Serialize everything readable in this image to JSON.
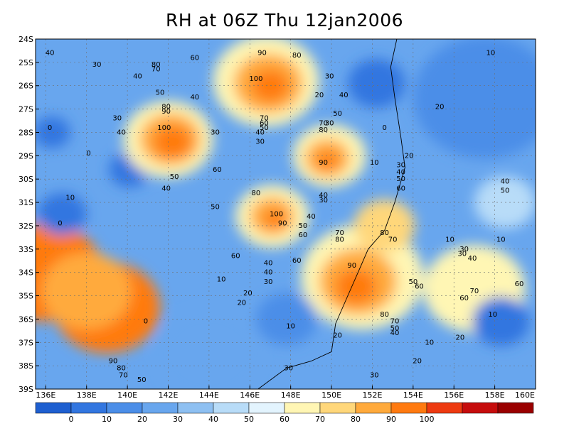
{
  "title": "RH at 06Z Thu 12jan2006",
  "map": {
    "type": "filled-contour",
    "variable": "RH",
    "lon_ticks": [
      "136E",
      "138E",
      "140E",
      "142E",
      "144E",
      "146E",
      "148E",
      "150E",
      "152E",
      "154E",
      "156E",
      "158E",
      "160E"
    ],
    "lat_ticks": [
      "24S",
      "25S",
      "26S",
      "27S",
      "28S",
      "29S",
      "30S",
      "31S",
      "32S",
      "33S",
      "34S",
      "35S",
      "36S",
      "37S",
      "38S",
      "39S"
    ],
    "lon_range": [
      135.5,
      160
    ],
    "lat_range": [
      -39,
      -24
    ],
    "grid": "dashed",
    "contour_labels": [
      {
        "text": "40",
        "lon": 136.2,
        "lat": -24.6
      },
      {
        "text": "30",
        "lon": 138.5,
        "lat": -25.1
      },
      {
        "text": "80",
        "lon": 141.4,
        "lat": -25.1
      },
      {
        "text": "70",
        "lon": 141.4,
        "lat": -25.3
      },
      {
        "text": "60",
        "lon": 143.3,
        "lat": -24.8
      },
      {
        "text": "90",
        "lon": 146.6,
        "lat": -24.6
      },
      {
        "text": "80",
        "lon": 148.3,
        "lat": -24.7
      },
      {
        "text": "100",
        "lon": 146.3,
        "lat": -25.7
      },
      {
        "text": "40",
        "lon": 140.5,
        "lat": -25.6
      },
      {
        "text": "30",
        "lon": 149.9,
        "lat": -25.6
      },
      {
        "text": "10",
        "lon": 157.8,
        "lat": -24.6
      },
      {
        "text": "50",
        "lon": 141.6,
        "lat": -26.3
      },
      {
        "text": "40",
        "lon": 143.3,
        "lat": -26.5
      },
      {
        "text": "20",
        "lon": 149.4,
        "lat": -26.4
      },
      {
        "text": "40",
        "lon": 150.6,
        "lat": -26.4
      },
      {
        "text": "20",
        "lon": 155.3,
        "lat": -26.9
      },
      {
        "text": "0",
        "lon": 136.2,
        "lat": -27.8
      },
      {
        "text": "30",
        "lon": 139.5,
        "lat": -27.4
      },
      {
        "text": "90",
        "lon": 141.9,
        "lat": -27.1
      },
      {
        "text": "80",
        "lon": 141.9,
        "lat": -26.9
      },
      {
        "text": "70",
        "lon": 146.7,
        "lat": -27.4
      },
      {
        "text": "60",
        "lon": 146.7,
        "lat": -27.6
      },
      {
        "text": "50",
        "lon": 146.7,
        "lat": -27.8
      },
      {
        "text": "40",
        "lon": 146.5,
        "lat": -28.0
      },
      {
        "text": "30",
        "lon": 146.5,
        "lat": -28.4
      },
      {
        "text": "50",
        "lon": 150.3,
        "lat": -27.2
      },
      {
        "text": "70",
        "lon": 149.6,
        "lat": -27.6
      },
      {
        "text": "30",
        "lon": 149.9,
        "lat": -27.6
      },
      {
        "text": "80",
        "lon": 149.6,
        "lat": -27.9
      },
      {
        "text": "0",
        "lon": 152.6,
        "lat": -27.8
      },
      {
        "text": "100",
        "lon": 141.8,
        "lat": -27.8
      },
      {
        "text": "40",
        "lon": 139.7,
        "lat": -28.0
      },
      {
        "text": "30",
        "lon": 144.3,
        "lat": -28.0
      },
      {
        "text": "0",
        "lon": 138.1,
        "lat": -28.9
      },
      {
        "text": "90",
        "lon": 149.6,
        "lat": -29.3
      },
      {
        "text": "10",
        "lon": 152.1,
        "lat": -29.3
      },
      {
        "text": "20",
        "lon": 153.8,
        "lat": -29.0
      },
      {
        "text": "30",
        "lon": 153.4,
        "lat": -29.4
      },
      {
        "text": "40",
        "lon": 153.4,
        "lat": -29.7
      },
      {
        "text": "50",
        "lon": 153.4,
        "lat": -30.0
      },
      {
        "text": "60",
        "lon": 144.4,
        "lat": -29.6
      },
      {
        "text": "50",
        "lon": 142.3,
        "lat": -29.9
      },
      {
        "text": "40",
        "lon": 141.9,
        "lat": -30.4
      },
      {
        "text": "60",
        "lon": 153.4,
        "lat": -30.4
      },
      {
        "text": "40",
        "lon": 158.5,
        "lat": -30.1
      },
      {
        "text": "50",
        "lon": 158.5,
        "lat": -30.5
      },
      {
        "text": "10",
        "lon": 137.2,
        "lat": -30.8
      },
      {
        "text": "80",
        "lon": 146.3,
        "lat": -30.6
      },
      {
        "text": "40",
        "lon": 149.6,
        "lat": -30.7
      },
      {
        "text": "30",
        "lon": 149.6,
        "lat": -30.9
      },
      {
        "text": "50",
        "lon": 144.3,
        "lat": -31.2
      },
      {
        "text": "100",
        "lon": 147.3,
        "lat": -31.5
      },
      {
        "text": "90",
        "lon": 147.6,
        "lat": -31.9
      },
      {
        "text": "40",
        "lon": 149.0,
        "lat": -31.6
      },
      {
        "text": "50",
        "lon": 148.6,
        "lat": -32.0
      },
      {
        "text": "0",
        "lon": 136.7,
        "lat": -31.9
      },
      {
        "text": "70",
        "lon": 150.4,
        "lat": -32.3
      },
      {
        "text": "80",
        "lon": 150.4,
        "lat": -32.6
      },
      {
        "text": "80",
        "lon": 152.6,
        "lat": -32.3
      },
      {
        "text": "60",
        "lon": 148.6,
        "lat": -32.4
      },
      {
        "text": "70",
        "lon": 153.0,
        "lat": -32.6
      },
      {
        "text": "10",
        "lon": 155.8,
        "lat": -32.6
      },
      {
        "text": "10",
        "lon": 158.3,
        "lat": -32.6
      },
      {
        "text": "30",
        "lon": 156.5,
        "lat": -33.0
      },
      {
        "text": "30",
        "lon": 156.4,
        "lat": -33.2
      },
      {
        "text": "40",
        "lon": 156.9,
        "lat": -33.4
      },
      {
        "text": "60",
        "lon": 145.3,
        "lat": -33.3
      },
      {
        "text": "60",
        "lon": 148.3,
        "lat": -33.5
      },
      {
        "text": "40",
        "lon": 146.9,
        "lat": -33.6
      },
      {
        "text": "90",
        "lon": 151.0,
        "lat": -33.7
      },
      {
        "text": "40",
        "lon": 146.9,
        "lat": -34.0
      },
      {
        "text": "10",
        "lon": 144.6,
        "lat": -34.3
      },
      {
        "text": "30",
        "lon": 146.9,
        "lat": -34.4
      },
      {
        "text": "50",
        "lon": 154.0,
        "lat": -34.4
      },
      {
        "text": "60",
        "lon": 154.3,
        "lat": -34.6
      },
      {
        "text": "60",
        "lon": 159.2,
        "lat": -34.5
      },
      {
        "text": "70",
        "lon": 157.0,
        "lat": -34.8
      },
      {
        "text": "60",
        "lon": 156.5,
        "lat": -35.1
      },
      {
        "text": "20",
        "lon": 145.9,
        "lat": -34.9
      },
      {
        "text": "20",
        "lon": 145.6,
        "lat": -35.3
      },
      {
        "text": "80",
        "lon": 152.6,
        "lat": -35.8
      },
      {
        "text": "10",
        "lon": 157.9,
        "lat": -35.8
      },
      {
        "text": "0",
        "lon": 140.9,
        "lat": -36.1
      },
      {
        "text": "70",
        "lon": 153.1,
        "lat": -36.1
      },
      {
        "text": "10",
        "lon": 148.0,
        "lat": -36.3
      },
      {
        "text": "50",
        "lon": 153.1,
        "lat": -36.4
      },
      {
        "text": "40",
        "lon": 153.1,
        "lat": -36.6
      },
      {
        "text": "20",
        "lon": 150.3,
        "lat": -36.7
      },
      {
        "text": "20",
        "lon": 156.3,
        "lat": -36.8
      },
      {
        "text": "10",
        "lon": 154.8,
        "lat": -37.0
      },
      {
        "text": "90",
        "lon": 139.3,
        "lat": -37.8
      },
      {
        "text": "20",
        "lon": 154.2,
        "lat": -37.8
      },
      {
        "text": "80",
        "lon": 139.7,
        "lat": -38.1
      },
      {
        "text": "70",
        "lon": 139.8,
        "lat": -38.4
      },
      {
        "text": "30",
        "lon": 147.9,
        "lat": -38.1
      },
      {
        "text": "50",
        "lon": 140.7,
        "lat": -38.6
      },
      {
        "text": "30",
        "lon": 152.1,
        "lat": -38.4
      }
    ],
    "spots": [
      {
        "lon": 136.3,
        "lat": -28.0,
        "r": 0.9,
        "v": 5
      },
      {
        "lon": 140.1,
        "lat": -29.6,
        "r": 1.0,
        "v": 5
      },
      {
        "lon": 139.0,
        "lat": -35.5,
        "r": 2.6,
        "v": 90
      },
      {
        "lon": 136.0,
        "lat": -34.0,
        "r": 2.8,
        "v": 90
      },
      {
        "lon": 138.0,
        "lat": -34.8,
        "r": 2.2,
        "v": 85
      },
      {
        "lon": 142.0,
        "lat": -28.3,
        "r": 2.2,
        "v": 60
      },
      {
        "lon": 142.1,
        "lat": -28.3,
        "r": 1.5,
        "v": 85
      },
      {
        "lon": 142.2,
        "lat": -28.4,
        "r": 0.9,
        "v": 95
      },
      {
        "lon": 146.8,
        "lat": -25.8,
        "r": 2.6,
        "v": 65
      },
      {
        "lon": 146.9,
        "lat": -25.9,
        "r": 1.7,
        "v": 85
      },
      {
        "lon": 147.0,
        "lat": -26.0,
        "r": 0.9,
        "v": 95
      },
      {
        "lon": 149.9,
        "lat": -29.0,
        "r": 1.8,
        "v": 60
      },
      {
        "lon": 149.8,
        "lat": -29.1,
        "r": 1.1,
        "v": 80
      },
      {
        "lon": 149.8,
        "lat": -29.2,
        "r": 0.5,
        "v": 95
      },
      {
        "lon": 147.1,
        "lat": -31.6,
        "r": 1.8,
        "v": 60
      },
      {
        "lon": 147.1,
        "lat": -31.6,
        "r": 1.1,
        "v": 85
      },
      {
        "lon": 147.2,
        "lat": -31.7,
        "r": 0.5,
        "v": 95
      },
      {
        "lon": 151.5,
        "lat": -34.2,
        "r": 3.0,
        "v": 65
      },
      {
        "lon": 151.3,
        "lat": -34.4,
        "r": 1.9,
        "v": 80
      },
      {
        "lon": 151.2,
        "lat": -34.6,
        "r": 1.0,
        "v": 95
      },
      {
        "lon": 152.6,
        "lat": -32.0,
        "r": 1.5,
        "v": 70
      },
      {
        "lon": 157.0,
        "lat": -34.7,
        "r": 2.5,
        "v": 60
      },
      {
        "lon": 158.5,
        "lat": -31.0,
        "r": 1.5,
        "v": 45
      },
      {
        "lon": 158.3,
        "lat": -36.1,
        "r": 1.4,
        "v": 5
      },
      {
        "lon": 152.2,
        "lat": -25.9,
        "r": 1.4,
        "v": 5
      },
      {
        "lon": 136.8,
        "lat": -31.5,
        "r": 1.2,
        "v": 5
      },
      {
        "lon": 147.8,
        "lat": -36.0,
        "r": 1.5,
        "v": 10
      },
      {
        "lon": 144.0,
        "lat": -37.5,
        "r": 2.5,
        "v": 25
      },
      {
        "lon": 157.5,
        "lat": -26.5,
        "r": 3.5,
        "v": 15
      }
    ],
    "colors": [
      "#1e5fd0",
      "#3276e0",
      "#4b8ee8",
      "#68a6ee",
      "#8ec0f2",
      "#b8dcf8",
      "#e3f4fe",
      "#fff6b4",
      "#ffd77a",
      "#ffaa3c",
      "#ff7a10",
      "#ee3a10",
      "#c60c0c",
      "#9a0000"
    ],
    "colorbar_labels": [
      "0",
      "10",
      "20",
      "30",
      "40",
      "50",
      "60",
      "70",
      "80",
      "90",
      "100"
    ]
  }
}
